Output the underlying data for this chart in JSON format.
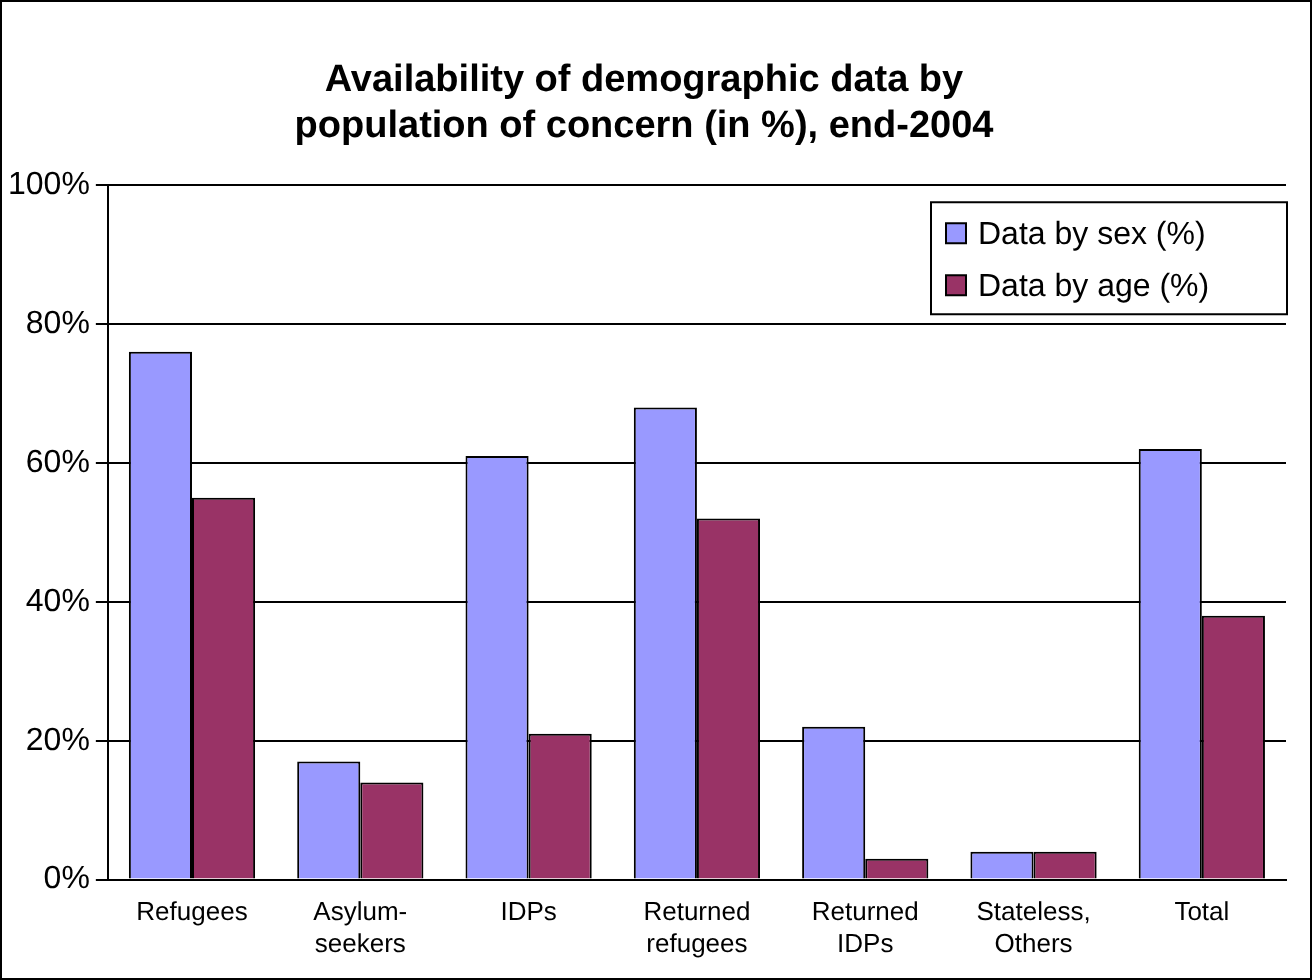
{
  "chart_data": {
    "type": "bar",
    "title": "Availability of demographic data by population of concern (in %), end-2004",
    "categories": [
      "Refugees",
      "Asylum- seekers",
      "IDPs",
      "Returned refugees",
      "Returned IDPs",
      "Stateless, Others",
      "Total"
    ],
    "series": [
      {
        "name": "Data by sex (%)",
        "color": "#9999ff",
        "values": [
          76,
          17,
          61,
          68,
          22,
          4,
          62
        ]
      },
      {
        "name": "Data by age (%)",
        "color": "#993366",
        "values": [
          55,
          14,
          21,
          52,
          3,
          4,
          38
        ]
      }
    ],
    "ylim": [
      0,
      100
    ],
    "yticks": [
      {
        "value": 0,
        "label": "0%"
      },
      {
        "value": 20,
        "label": "20%"
      },
      {
        "value": 40,
        "label": "40%"
      },
      {
        "value": 60,
        "label": "60%"
      },
      {
        "value": 80,
        "label": "80%"
      },
      {
        "value": 100,
        "label": "100%"
      }
    ],
    "grid": "y",
    "legend": "top right"
  }
}
